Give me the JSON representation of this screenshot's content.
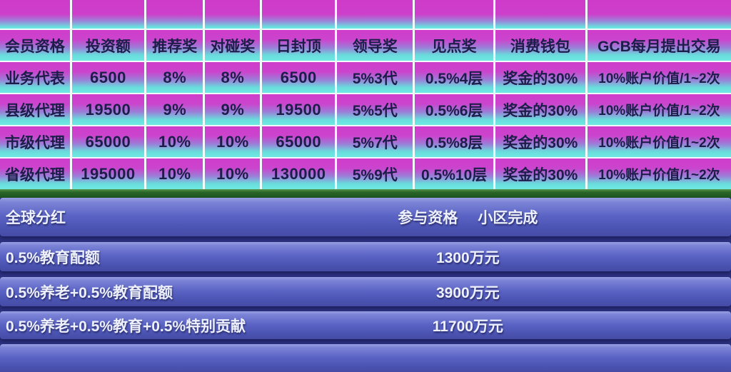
{
  "table": {
    "columns": [
      "会员资格",
      "投资额",
      "推荐奖",
      "对碰奖",
      "日封顶",
      "领导奖",
      "见点奖",
      "消费钱包",
      "GCB每月提出交易"
    ],
    "rows": [
      {
        "cells": [
          "业务代表",
          "6500",
          "8%",
          "8%",
          "6500",
          "5%3代",
          "0.5%4层",
          "奖金的30%",
          "10%账户价值/1~2次"
        ]
      },
      {
        "cells": [
          "县级代理",
          "19500",
          "9%",
          "9%",
          "19500",
          "5%5代",
          "0.5%6层",
          "奖金的30%",
          "10%账户价值/1~2次"
        ]
      },
      {
        "cells": [
          "市级代理",
          "65000",
          "10%",
          "10%",
          "65000",
          "5%7代",
          "0.5%8层",
          "奖金的30%",
          "10%账户价值/1~2次"
        ]
      },
      {
        "cells": [
          "省级代理",
          "195000",
          "10%",
          "10%",
          "130000",
          "5%9代",
          "0.5%10层",
          "奖金的30%",
          "10%账户价值/1~2次"
        ]
      }
    ]
  },
  "dividend": {
    "title": "全球分红",
    "qualification_label": "参与资格",
    "qualification_value": "小区完成",
    "rows": [
      {
        "label": "0.5%教育配额",
        "value": "1300万元"
      },
      {
        "label": "0.5%养老+0.5%教育配额",
        "value": "3900万元"
      },
      {
        "label": "0.5%养老+0.5%教育+0.5%特别贡献",
        "value": "11700万元"
      }
    ]
  },
  "colors": {
    "cell_gradient_top": "#cf3dca",
    "cell_gradient_bottom": "#6fe9e2",
    "grid_line": "#f2fbfb",
    "divider_green": "#2a6627",
    "bar_blue": "#5a63c4",
    "section_background": "#2c3180",
    "table_text": "#1d1d4a",
    "bar_text": "#eef1fc"
  }
}
